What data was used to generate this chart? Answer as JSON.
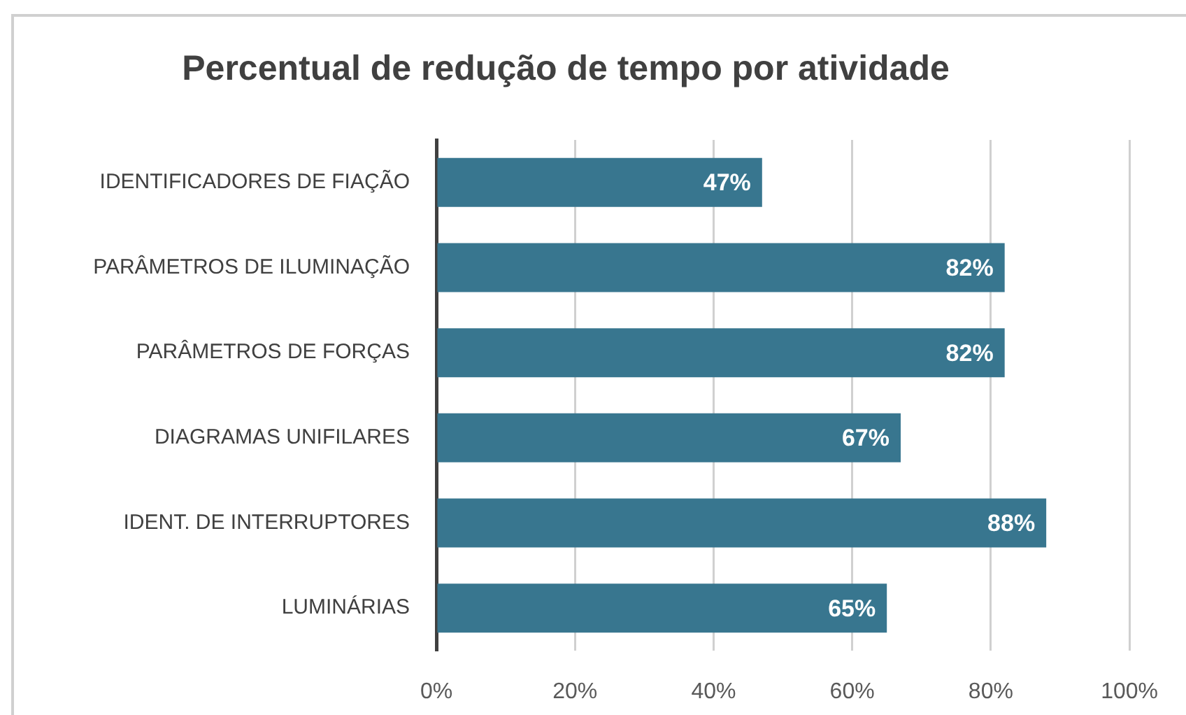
{
  "chart_data": {
    "type": "bar",
    "orientation": "horizontal",
    "title": "Percentual de redução de tempo por atividade",
    "categories": [
      "IDENTIFICADORES DE FIAÇÃO",
      "PARÂMETROS DE ILUMINAÇÃO",
      "PARÂMETROS DE FORÇAS",
      "DIAGRAMAS UNIFILARES",
      "IDENT. DE INTERRUPTORES",
      "LUMINÁRIAS"
    ],
    "values": [
      47,
      82,
      82,
      67,
      88,
      65
    ],
    "value_labels": [
      "47%",
      "82%",
      "82%",
      "67%",
      "88%",
      "65%"
    ],
    "color": "#38768f",
    "xlim": [
      0,
      100
    ],
    "xticks": [
      {
        "value": 0,
        "label": "0%"
      },
      {
        "value": 20,
        "label": "20%"
      },
      {
        "value": 40,
        "label": "40%"
      },
      {
        "value": 60,
        "label": "60%"
      },
      {
        "value": 80,
        "label": "80%"
      },
      {
        "value": 100,
        "label": "100%"
      }
    ],
    "grid": "x"
  }
}
